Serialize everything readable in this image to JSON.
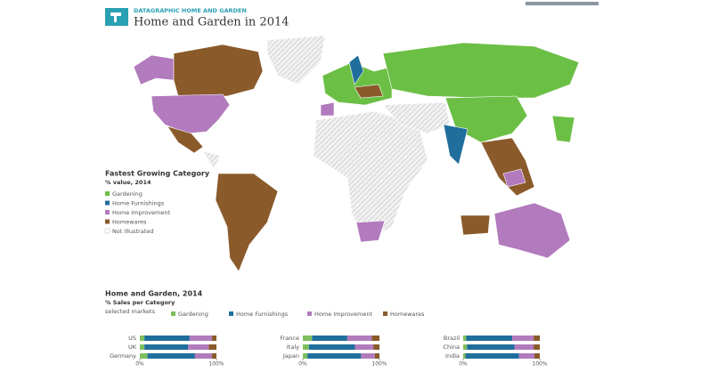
{
  "header": {
    "kicker": "DATAGRAPHIC HOME AND GARDEN",
    "title": "Home and Garden in 2014"
  },
  "map_legend": {
    "title": "Fastest Growing Category",
    "subtitle": "% value, 2014",
    "items": [
      {
        "label": "Gardening",
        "color": "#6cbf45"
      },
      {
        "label": "Home Furnishings",
        "color": "#1f6e9c"
      },
      {
        "label": "Home Improvement",
        "color": "#b27bbd"
      },
      {
        "label": "Homewares",
        "color": "#8a5a2b"
      },
      {
        "label": "Not Illustrated"
      }
    ]
  },
  "chart_data": {
    "type": "bar",
    "orientation": "horizontal",
    "stacked": true,
    "title": "Home and Garden, 2014",
    "subtitle": "% Sales per Category",
    "note": "selected markets",
    "categories": [
      "US",
      "UK",
      "Germany",
      "France",
      "Italy",
      "Japan",
      "Brazil",
      "China",
      "India"
    ],
    "series": [
      {
        "name": "Gardening",
        "color": "#7dbf5e",
        "values": [
          6,
          6,
          10,
          12,
          8,
          6,
          4,
          5,
          3
        ]
      },
      {
        "name": "Home Furnishings",
        "color": "#1f6e9c",
        "values": [
          59,
          57,
          62,
          46,
          60,
          70,
          60,
          62,
          70
        ]
      },
      {
        "name": "Home Improvement",
        "color": "#b27bbd",
        "values": [
          29,
          27,
          22,
          32,
          24,
          18,
          28,
          25,
          20
        ]
      },
      {
        "name": "Homewares",
        "color": "#8a5a2b",
        "values": [
          6,
          10,
          6,
          10,
          8,
          6,
          8,
          8,
          7
        ]
      }
    ],
    "xlim": [
      0,
      100
    ],
    "xticks": [
      {
        "value": 0,
        "label": "0%"
      },
      {
        "value": 100,
        "label": "100%"
      }
    ]
  }
}
